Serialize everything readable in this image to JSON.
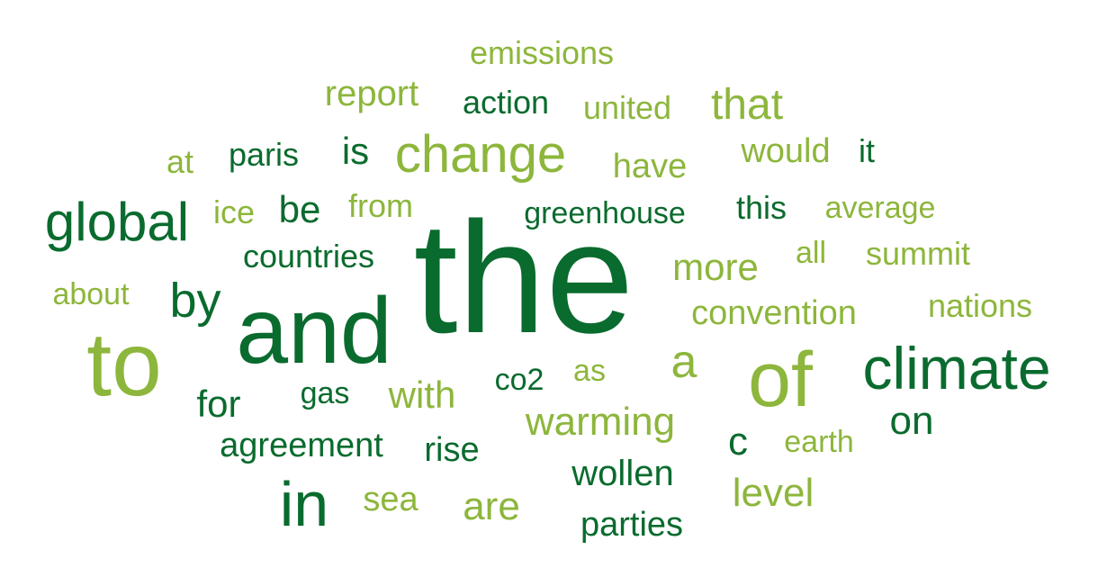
{
  "palette": {
    "dark": "#0a6b2e",
    "light": "#8db63c",
    "background": "#ffffff"
  },
  "words": [
    {
      "text": "emissions"
    },
    {
      "text": "report"
    },
    {
      "text": "action"
    },
    {
      "text": "united"
    },
    {
      "text": "that"
    },
    {
      "text": "at"
    },
    {
      "text": "paris"
    },
    {
      "text": "is"
    },
    {
      "text": "change"
    },
    {
      "text": "have"
    },
    {
      "text": "would"
    },
    {
      "text": "it"
    },
    {
      "text": "global"
    },
    {
      "text": "ice"
    },
    {
      "text": "be"
    },
    {
      "text": "from"
    },
    {
      "text": "greenhouse"
    },
    {
      "text": "this"
    },
    {
      "text": "average"
    },
    {
      "text": "countries"
    },
    {
      "text": "all"
    },
    {
      "text": "summit"
    },
    {
      "text": "the"
    },
    {
      "text": "more"
    },
    {
      "text": "about"
    },
    {
      "text": "by"
    },
    {
      "text": "nations"
    },
    {
      "text": "convention"
    },
    {
      "text": "and"
    },
    {
      "text": "to"
    },
    {
      "text": "climate"
    },
    {
      "text": "of"
    },
    {
      "text": "a"
    },
    {
      "text": "as"
    },
    {
      "text": "co2"
    },
    {
      "text": "gas"
    },
    {
      "text": "with"
    },
    {
      "text": "for"
    },
    {
      "text": "warming"
    },
    {
      "text": "on"
    },
    {
      "text": "agreement"
    },
    {
      "text": "rise"
    },
    {
      "text": "c"
    },
    {
      "text": "earth"
    },
    {
      "text": "wollen"
    },
    {
      "text": "in"
    },
    {
      "text": "sea"
    },
    {
      "text": "are"
    },
    {
      "text": "level"
    },
    {
      "text": "parties"
    }
  ]
}
